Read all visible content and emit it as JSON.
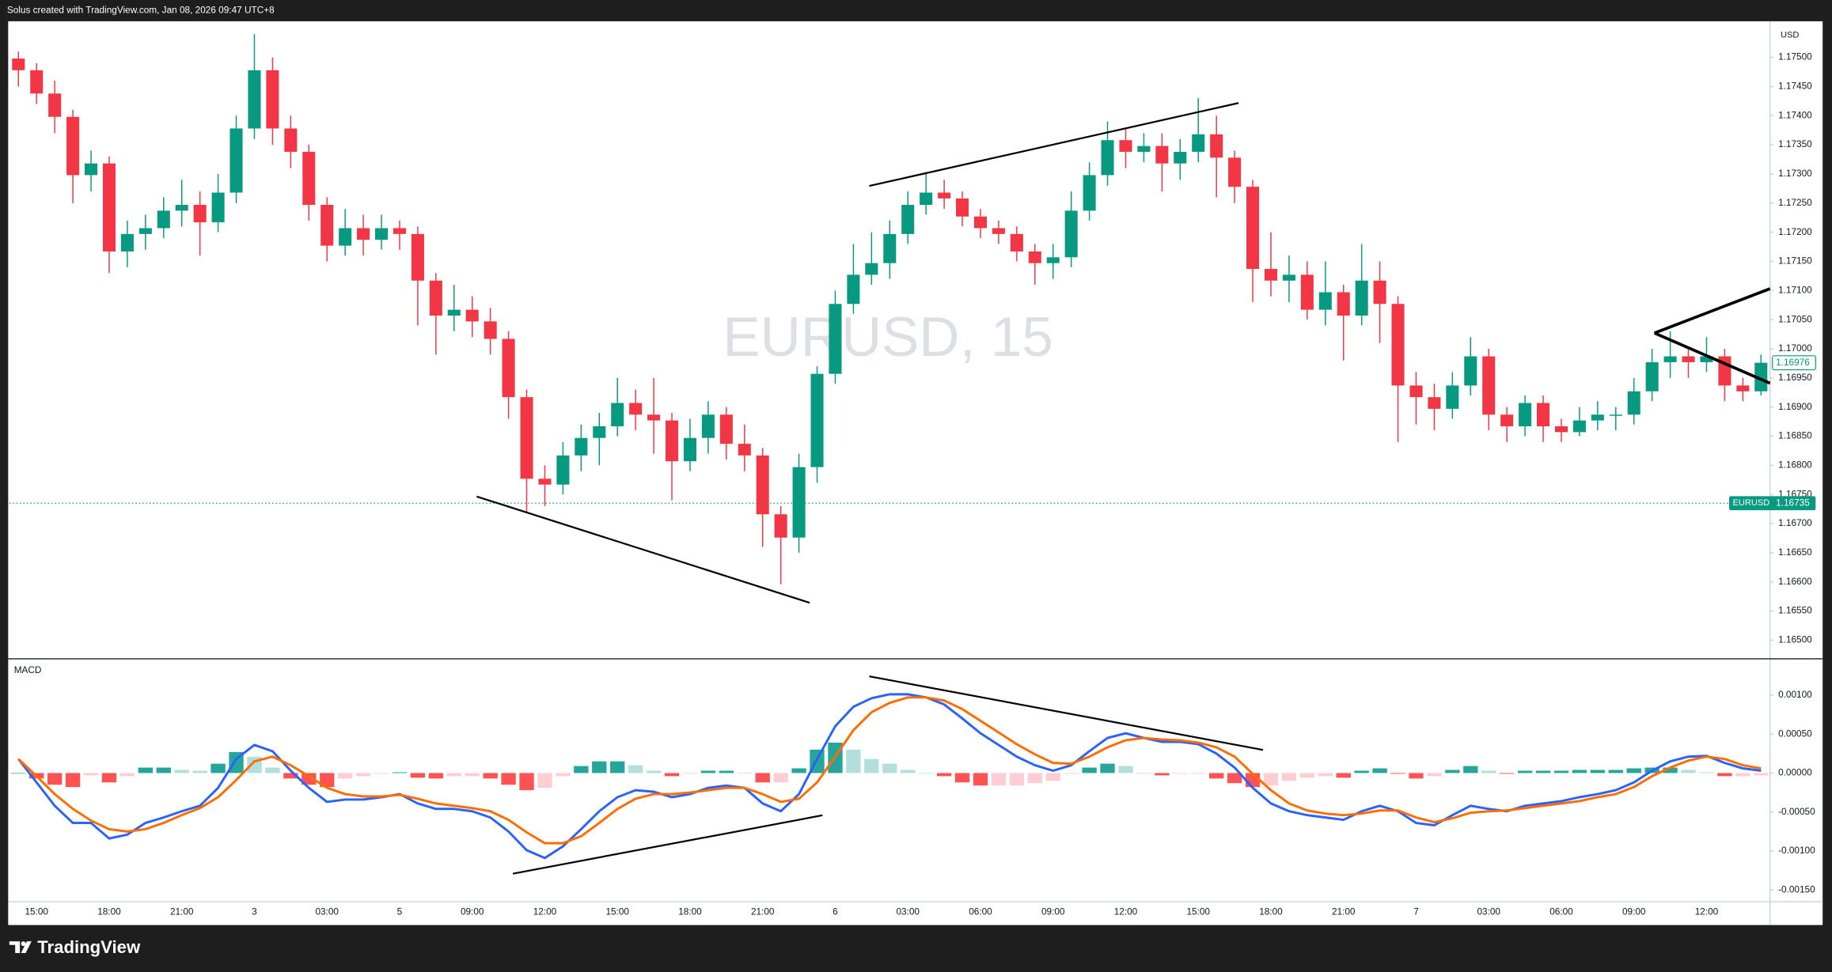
{
  "header": {
    "text": "Solus created with TradingView.com, Jan 08, 2026 09:47 UTC+8"
  },
  "footer": {
    "brand": "TradingView"
  },
  "chart_data": [
    {
      "type": "candlestick",
      "title": "EURUSD, 15",
      "y_label": "USD",
      "categories": [
        null,
        "15:00",
        null,
        null,
        null,
        "18:00",
        null,
        null,
        null,
        "21:00",
        null,
        null,
        null,
        "3",
        null,
        null,
        null,
        "03:00",
        null,
        null,
        null,
        "5",
        null,
        null,
        null,
        "09:00",
        null,
        null,
        null,
        "12:00",
        null,
        null,
        null,
        "15:00",
        null,
        null,
        null,
        "18:00",
        null,
        null,
        null,
        "21:00",
        null,
        null,
        null,
        "6",
        null,
        null,
        null,
        "03:00",
        null,
        null,
        null,
        "06:00",
        null,
        null,
        null,
        "09:00",
        null,
        null,
        null,
        "12:00",
        null,
        null,
        null,
        "15:00",
        null,
        null,
        null,
        "18:00",
        null,
        null,
        null,
        "21:00",
        null,
        null,
        null,
        "7",
        null,
        null,
        null,
        "03:00",
        null,
        null,
        null,
        "06:00",
        null,
        null,
        null,
        "09:00",
        null,
        null,
        null,
        "12:00",
        null,
        null,
        null
      ],
      "open": [
        1.17498,
        1.17478,
        1.17438,
        1.17398,
        1.17298,
        1.17318,
        1.17167,
        1.17197,
        1.17207,
        1.17237,
        1.17247,
        1.17217,
        1.17268,
        1.17378,
        1.17478,
        1.17378,
        1.17338,
        1.17247,
        1.17177,
        1.17207,
        1.17187,
        1.17207,
        1.17197,
        1.17117,
        1.17057,
        1.17067,
        1.17047,
        1.17017,
        1.16917,
        1.16777,
        1.16767,
        1.16817,
        1.16847,
        1.16867,
        1.16907,
        1.16887,
        1.16877,
        1.16807,
        1.16847,
        1.16887,
        1.16837,
        1.16817,
        1.16716,
        1.16676,
        1.16797,
        1.16957,
        1.17077,
        1.17127,
        1.17147,
        1.17197,
        1.17247,
        1.17268,
        1.17258,
        1.17227,
        1.17207,
        1.17197,
        1.17167,
        1.17147,
        1.17157,
        1.17237,
        1.17298,
        1.17358,
        1.17338,
        1.17348,
        1.17318,
        1.17338,
        1.17368,
        1.17328,
        1.17278,
        1.17137,
        1.17117,
        1.17127,
        1.17067,
        1.17097,
        1.17057,
        1.17117,
        1.17077,
        1.16937,
        1.16917,
        1.16897,
        1.16937,
        1.16987,
        1.16887,
        1.16867,
        1.16907,
        1.16867,
        1.16857,
        1.16877,
        1.16887,
        1.16887,
        1.16927,
        1.16977,
        1.16987,
        1.16977,
        1.16987,
        1.16937,
        1.16927
      ],
      "high": [
        1.1751,
        1.1749,
        1.1746,
        1.1741,
        1.1734,
        1.1733,
        1.1722,
        1.1723,
        1.1726,
        1.1729,
        1.1727,
        1.173,
        1.174,
        1.1754,
        1.175,
        1.174,
        1.1735,
        1.1726,
        1.1724,
        1.1723,
        1.1723,
        1.1722,
        1.1721,
        1.1713,
        1.1711,
        1.1709,
        1.1707,
        1.1703,
        1.1693,
        1.168,
        1.1684,
        1.1687,
        1.1689,
        1.1695,
        1.1693,
        1.1695,
        1.1689,
        1.1688,
        1.1691,
        1.169,
        1.1687,
        1.1683,
        1.1673,
        1.1682,
        1.1697,
        1.171,
        1.1718,
        1.172,
        1.1722,
        1.1727,
        1.173,
        1.1729,
        1.1727,
        1.1724,
        1.1722,
        1.1721,
        1.1718,
        1.1718,
        1.1727,
        1.1732,
        1.1739,
        1.1738,
        1.1737,
        1.1737,
        1.1736,
        1.1743,
        1.174,
        1.1734,
        1.1729,
        1.172,
        1.1716,
        1.1715,
        1.1715,
        1.1711,
        1.1718,
        1.1715,
        1.1709,
        1.1696,
        1.1694,
        1.1696,
        1.1702,
        1.17,
        1.169,
        1.1692,
        1.1692,
        1.1688,
        1.169,
        1.1691,
        1.169,
        1.1695,
        1.17,
        1.1703,
        1.17,
        1.1702,
        1.17,
        1.1695,
        1.1699
      ],
      "low": [
        1.1745,
        1.1742,
        1.1737,
        1.1725,
        1.1727,
        1.1713,
        1.1714,
        1.1717,
        1.1719,
        1.1721,
        1.1716,
        1.172,
        1.1725,
        1.1736,
        1.1735,
        1.1731,
        1.1722,
        1.1715,
        1.1716,
        1.1716,
        1.1717,
        1.1717,
        1.1704,
        1.1699,
        1.1703,
        1.1702,
        1.1699,
        1.1688,
        1.1672,
        1.1673,
        1.1675,
        1.1679,
        1.168,
        1.1685,
        1.1686,
        1.1682,
        1.1674,
        1.1679,
        1.1682,
        1.1681,
        1.1679,
        1.1666,
        1.16596,
        1.1665,
        1.1677,
        1.1694,
        1.1706,
        1.1711,
        1.1712,
        1.1718,
        1.1723,
        1.1724,
        1.1721,
        1.1719,
        1.1718,
        1.1715,
        1.1711,
        1.1712,
        1.1714,
        1.1722,
        1.1728,
        1.1731,
        1.1732,
        1.1727,
        1.1729,
        1.1732,
        1.1726,
        1.1725,
        1.1708,
        1.1709,
        1.1708,
        1.1705,
        1.1704,
        1.1698,
        1.1704,
        1.1701,
        1.1684,
        1.1687,
        1.1686,
        1.1688,
        1.1692,
        1.1686,
        1.1684,
        1.1685,
        1.1684,
        1.1684,
        1.1685,
        1.1686,
        1.1686,
        1.1687,
        1.1691,
        1.1695,
        1.1695,
        1.1696,
        1.1691,
        1.1691,
        1.1692
      ],
      "close": [
        1.17478,
        1.17438,
        1.17398,
        1.17298,
        1.17318,
        1.17167,
        1.17197,
        1.17207,
        1.17237,
        1.17247,
        1.17217,
        1.17268,
        1.17378,
        1.17478,
        1.17378,
        1.17338,
        1.17247,
        1.17177,
        1.17207,
        1.17187,
        1.17207,
        1.17197,
        1.17117,
        1.17057,
        1.17067,
        1.17047,
        1.17017,
        1.16917,
        1.16777,
        1.16767,
        1.16817,
        1.16847,
        1.16867,
        1.16907,
        1.16887,
        1.16877,
        1.16807,
        1.16847,
        1.16887,
        1.16837,
        1.16817,
        1.16716,
        1.16676,
        1.16797,
        1.16957,
        1.17077,
        1.17127,
        1.17147,
        1.17197,
        1.17247,
        1.17268,
        1.17258,
        1.17227,
        1.17207,
        1.17197,
        1.17167,
        1.17147,
        1.17157,
        1.17237,
        1.17298,
        1.17358,
        1.17338,
        1.17348,
        1.17318,
        1.17338,
        1.17368,
        1.17328,
        1.17278,
        1.17137,
        1.17117,
        1.17127,
        1.17067,
        1.17097,
        1.17057,
        1.17117,
        1.17077,
        1.16937,
        1.16917,
        1.16897,
        1.16937,
        1.16987,
        1.16887,
        1.16867,
        1.16907,
        1.16867,
        1.16857,
        1.16877,
        1.16887,
        1.16887,
        1.16927,
        1.16977,
        1.16987,
        1.16977,
        1.16987,
        1.16937,
        1.16927,
        1.16976
      ],
      "up_color": "#089981",
      "down_color": "#f23645",
      "ylim": [
        1.1647,
        1.17562
      ],
      "yticks": [
        {
          "value": 1.165,
          "label": "1.16500"
        },
        {
          "value": 1.1655,
          "label": "1.16550"
        },
        {
          "value": 1.166,
          "label": "1.16600"
        },
        {
          "value": 1.1665,
          "label": "1.16650"
        },
        {
          "value": 1.167,
          "label": "1.16700"
        },
        {
          "value": 1.1675,
          "label": "1.16750"
        },
        {
          "value": 1.168,
          "label": "1.16800"
        },
        {
          "value": 1.1685,
          "label": "1.16850"
        },
        {
          "value": 1.169,
          "label": "1.16900"
        },
        {
          "value": 1.1695,
          "label": "1.16950"
        },
        {
          "value": 1.17,
          "label": "1.17000"
        },
        {
          "value": 1.1705,
          "label": "1.17050"
        },
        {
          "value": 1.171,
          "label": "1.17100"
        },
        {
          "value": 1.1715,
          "label": "1.17150"
        },
        {
          "value": 1.172,
          "label": "1.17200"
        },
        {
          "value": 1.1725,
          "label": "1.17250"
        },
        {
          "value": 1.173,
          "label": "1.17300"
        },
        {
          "value": 1.1735,
          "label": "1.17350"
        },
        {
          "value": 1.174,
          "label": "1.17400"
        },
        {
          "value": 1.1745,
          "label": "1.17450"
        },
        {
          "value": 1.175,
          "label": "1.17500"
        }
      ],
      "grid": false,
      "last_price": 1.16976,
      "price_line": {
        "name": "EURUSD",
        "value": 1.16735,
        "color": "#089981"
      }
    },
    {
      "type": "macd",
      "title": "MACD",
      "macd": {
        "color": "#2962ff",
        "values": [
          0.00018,
          -0.00012,
          -0.00042,
          -0.00064,
          -0.00064,
          -0.00084,
          -0.00079,
          -0.00064,
          -0.00057,
          -0.00049,
          -0.00042,
          -0.00019,
          0.00018,
          0.00036,
          0.00028,
          3e-05,
          -0.00019,
          -0.00037,
          -0.00034,
          -0.00034,
          -0.00031,
          -0.00027,
          -0.00039,
          -0.00046,
          -0.00046,
          -0.00049,
          -0.00057,
          -0.00075,
          -0.00099,
          -0.00109,
          -0.00094,
          -0.00072,
          -0.00049,
          -0.00031,
          -0.00022,
          -0.00024,
          -0.00031,
          -0.00027,
          -0.00019,
          -0.00016,
          -0.00019,
          -0.00039,
          -0.00049,
          -0.00027,
          0.00018,
          0.0006,
          0.00085,
          0.00096,
          0.00101,
          0.00101,
          0.00097,
          0.00088,
          0.0007,
          0.00051,
          0.00036,
          0.00021,
          0.0001,
          3e-05,
          0.0001,
          0.00028,
          0.00045,
          0.00051,
          0.00045,
          0.0004,
          0.0004,
          0.00037,
          0.00025,
          7e-05,
          -0.00019,
          -0.00039,
          -0.00049,
          -0.00054,
          -0.00057,
          -0.0006,
          -0.00049,
          -0.00042,
          -0.00049,
          -0.00064,
          -0.00067,
          -0.00054,
          -0.00042,
          -0.00046,
          -0.00049,
          -0.00042,
          -0.00039,
          -0.00036,
          -0.00031,
          -0.00027,
          -0.00022,
          -0.00012,
          3e-05,
          0.00015,
          0.00021,
          0.00022,
          0.00013,
          6e-05,
          3e-05
        ]
      },
      "signal": {
        "color": "#ff6d00",
        "values": [
          0.00018,
          -4e-05,
          -0.00027,
          -0.00046,
          -0.00061,
          -0.00072,
          -0.00075,
          -0.00072,
          -0.00064,
          -0.00054,
          -0.00045,
          -0.00031,
          -9e-05,
          0.00015,
          0.00021,
          0.0001,
          -4e-05,
          -0.00019,
          -0.00027,
          -0.0003,
          -0.0003,
          -0.00028,
          -0.00033,
          -0.00039,
          -0.00042,
          -0.00045,
          -0.00049,
          -0.0006,
          -0.00076,
          -0.0009,
          -0.0009,
          -0.00081,
          -0.00064,
          -0.00046,
          -0.00033,
          -0.00027,
          -0.00027,
          -0.00025,
          -0.00022,
          -0.00019,
          -0.00019,
          -0.00027,
          -0.00037,
          -0.00033,
          -0.00012,
          0.00021,
          0.00055,
          0.00078,
          0.0009,
          0.00097,
          0.00097,
          0.00093,
          0.00082,
          0.00067,
          0.00052,
          0.00037,
          0.00024,
          0.00013,
          0.00012,
          0.00021,
          0.00033,
          0.00042,
          0.00045,
          0.00043,
          0.00042,
          0.00039,
          0.00033,
          0.00021,
          -1e-05,
          -0.00022,
          -0.00039,
          -0.00048,
          -0.00052,
          -0.00054,
          -0.00052,
          -0.00048,
          -0.00048,
          -0.00057,
          -0.00063,
          -0.00058,
          -0.00051,
          -0.00049,
          -0.00048,
          -0.00045,
          -0.00042,
          -0.00039,
          -0.00036,
          -0.00031,
          -0.00027,
          -0.00018,
          -4e-05,
          7e-05,
          0.00016,
          0.00021,
          0.00018,
          0.0001,
          6e-05
        ]
      },
      "histogram": {
        "colors": {
          "grow_above": "#26a69a",
          "fall_above": "#b2dfdb",
          "grow_below": "#ffcdd2",
          "fall_below": "#ff5252"
        },
        "values": [
          0,
          -7e-05,
          -0.00015,
          -0.00018,
          -3e-05,
          -0.00012,
          -4e-05,
          7e-05,
          7e-05,
          4e-05,
          3e-05,
          0.00012,
          0.00027,
          0.00021,
          7e-05,
          -7e-05,
          -0.00015,
          -0.00018,
          -7e-05,
          -4e-05,
          -1e-05,
          1e-05,
          -6e-05,
          -7e-05,
          -4e-05,
          -4e-05,
          -7e-05,
          -0.00015,
          -0.00022,
          -0.00019,
          -4e-05,
          9e-05,
          0.00015,
          0.00015,
          0.0001,
          3e-05,
          -4e-05,
          -1e-05,
          3e-05,
          3e-05,
          0,
          -0.00012,
          -0.00012,
          6e-05,
          0.0003,
          0.00039,
          0.0003,
          0.00018,
          0.00012,
          4e-05,
          0,
          -4e-05,
          -0.00012,
          -0.00016,
          -0.00016,
          -0.00016,
          -0.00013,
          -0.0001,
          -1e-05,
          7e-05,
          0.00012,
          9e-05,
          0,
          -3e-05,
          -1e-05,
          -1e-05,
          -7e-05,
          -0.00013,
          -0.00018,
          -0.00016,
          -0.0001,
          -6e-05,
          -4e-05,
          -6e-05,
          3e-05,
          6e-05,
          -1e-05,
          -7e-05,
          -4e-05,
          4e-05,
          9e-05,
          3e-05,
          -1e-05,
          3e-05,
          3e-05,
          3e-05,
          4e-05,
          4e-05,
          4e-05,
          6e-05,
          7e-05,
          7e-05,
          4e-05,
          1e-05,
          -4e-05,
          -4e-05,
          -3e-05
        ]
      },
      "ylim": [
        -0.00165,
        0.00145
      ],
      "yticks": [
        {
          "value": -0.0015,
          "label": "-0.00150"
        },
        {
          "value": -0.001,
          "label": "-0.00100"
        },
        {
          "value": -0.0005,
          "label": "-0.00050"
        },
        {
          "value": 0,
          "label": "0.00000"
        },
        {
          "value": 0.0005,
          "label": "0.00050"
        },
        {
          "value": 0.001,
          "label": "0.00100"
        }
      ]
    }
  ]
}
